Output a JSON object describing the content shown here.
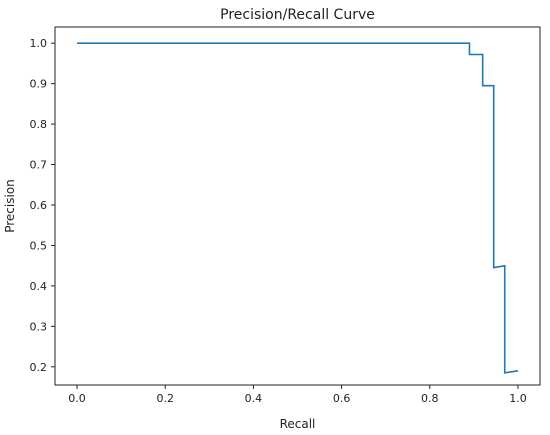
{
  "chart_data": {
    "type": "line",
    "title": "Precision/Recall Curve",
    "xlabel": "Recall",
    "ylabel": "Precision",
    "xlim": [
      -0.05,
      1.05
    ],
    "ylim": [
      0.155,
      1.04
    ],
    "x_ticks": [
      0.0,
      0.2,
      0.4,
      0.6,
      0.8,
      1.0
    ],
    "x_tick_labels": [
      "0.0",
      "0.2",
      "0.4",
      "0.6",
      "0.8",
      "1.0"
    ],
    "y_ticks": [
      0.2,
      0.3,
      0.4,
      0.5,
      0.6,
      0.7,
      0.8,
      0.9,
      1.0
    ],
    "y_tick_labels": [
      "0.2",
      "0.3",
      "0.4",
      "0.5",
      "0.6",
      "0.7",
      "0.8",
      "0.9",
      "1.0"
    ],
    "grid": false,
    "line_color": "#1f77b4",
    "series": [
      {
        "x": [
          0.0,
          0.89,
          0.89,
          0.92,
          0.92,
          0.945,
          0.945,
          0.97,
          0.97,
          1.0
        ],
        "y": [
          1.0,
          1.0,
          0.972,
          0.972,
          0.895,
          0.895,
          0.445,
          0.45,
          0.185,
          0.19
        ]
      }
    ]
  }
}
